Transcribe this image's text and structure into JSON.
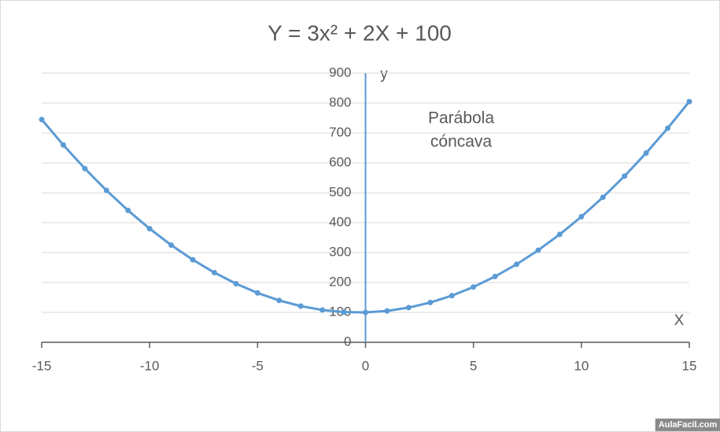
{
  "chart_data": {
    "type": "line",
    "title": "Y = 3x² + 2X + 100",
    "x": [
      -15,
      -14,
      -13,
      -12,
      -11,
      -10,
      -9,
      -8,
      -7,
      -6,
      -5,
      -4,
      -3,
      -2,
      -1,
      0,
      1,
      2,
      3,
      4,
      5,
      6,
      7,
      8,
      9,
      10,
      11,
      12,
      13,
      14,
      15
    ],
    "series": [
      {
        "color": "#5b9bd5",
        "values": [
          745,
          660,
          581,
          508,
          441,
          380,
          325,
          276,
          233,
          196,
          165,
          140,
          121,
          108,
          101,
          100,
          105,
          116,
          133,
          156,
          185,
          220,
          261,
          308,
          361,
          420,
          485,
          556,
          633,
          716,
          805
        ]
      }
    ],
    "xlim": [
      -15,
      15
    ],
    "xticks": [
      -15,
      -10,
      -5,
      0,
      5,
      10,
      15
    ],
    "ylim": [
      0,
      900
    ],
    "yticks": [
      0,
      100,
      200,
      300,
      400,
      500,
      600,
      700,
      800,
      900
    ],
    "grid": true,
    "xlabel": "X",
    "ylabel": "y",
    "annotation": [
      "Parábola",
      "cóncava"
    ],
    "annotation_color": "#c00000",
    "watermark": "AulaFacil.com"
  }
}
